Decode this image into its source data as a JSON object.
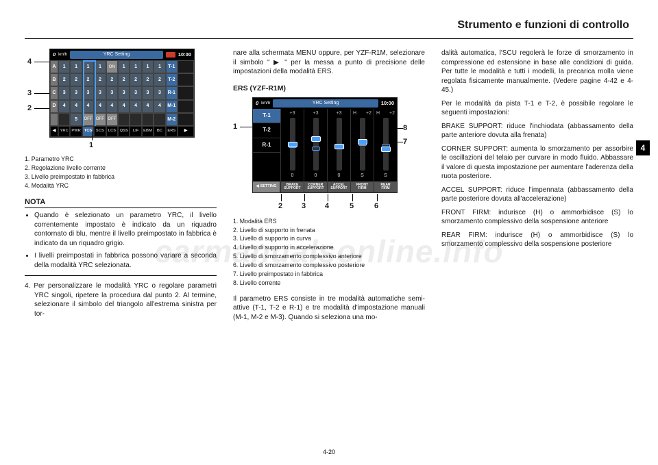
{
  "header": {
    "title": "Strumento e funzioni di controllo"
  },
  "sidetab": "4",
  "footer_page": "4-20",
  "watermark": "carmanualsonline.info",
  "col1": {
    "legend1": "1. Parametro YRC",
    "legend2": "2. Regolazione livello corrente",
    "legend3": "3. Livello preimpostato in fabbrica",
    "legend4": "4. Modalità YRC",
    "nota_label": "NOTA",
    "bullet1": "Quando è selezionato un parametro YRC, il livello correntemente impostato è indicato da un riquadro contornato di blu, mentre il livello preimpostato in fabbrica è indicato da un riquadro grigio.",
    "bullet2": "I livelli preimpostati in fabbrica possono variare a seconda della modalità YRC selezionata.",
    "step4": "4.  Per personalizzare le modalità YRC o regolare parametri YRC singoli, ripetere la procedura dal punto 2. Al termine, selezionare il simbolo del triangolo all'estrema sinistra per tor-"
  },
  "col2": {
    "cont": "nare alla schermata MENU oppure, per YZF-R1M, selezionare il simbolo \" ▶ \" per la messa a punto di precisione delle impostazioni della modalità ERS.",
    "ers_title": "ERS (YZF-R1M)",
    "legend1": "1. Modalità ERS",
    "legend2": "2. Livello di supporto in frenata",
    "legend3": "3. Livello di supporto in curva",
    "legend4": "4. Livello di supporto in accelerazione",
    "legend5": "5. Livello di smorzamento complessivo anteriore",
    "legend6": "6. Livello di smorzamento complessivo posteriore",
    "legend7": "7. Livello preimpostato in fabbrica",
    "legend8": "8. Livello corrente",
    "para2": "Il parametro ERS consiste in tre modalità automatiche semi-attive (T-1, T-2 e R-1) e tre modalità d'impostazione manuali (M-1, M-2 e M-3). Quando si seleziona una mo-"
  },
  "col3": {
    "p1": "dalità automatica, l'SCU regolerà le forze di smorzamento in compressione ed estensione in base alle condizioni di guida. Per tutte le modalità e tutti i modelli, la precarica molla viene regolata fisicamente manualmente. (Vedere pagine 4-42 e 4-45.)",
    "p2": "Per le modalità da pista T-1 e T-2, è possibile regolare le seguenti impostazioni:",
    "p3": "BRAKE SUPPORT: riduce l'inchiodata (abbassamento della parte anteriore dovuta alla frenata)",
    "p4": "CORNER SUPPORT: aumenta lo smorzamento per assorbire le oscillazioni del telaio per curvare in modo fluido. Abbassare il valore di questa impostazione per aumentare l'aderenza della ruota posteriore.",
    "p5": "ACCEL SUPPORT: riduce l'impennata (abbassamento della parte posteriore dovuta all'accelerazione)",
    "p6": "FRONT FIRM: indurisce (H) o ammorbidisce (S) lo smorzamento complessivo della sospensione anteriore",
    "p7": "REAR FIRM: indurisce (H) o ammorbidisce (S) lo smorzamento complessivo della sospensione posteriore"
  },
  "fig1": {
    "speed": "0",
    "unit": "km/h",
    "title": "YRC Setting",
    "time": "10:00",
    "row_btns": [
      "A",
      "B",
      "C",
      "D",
      " "
    ],
    "grid": [
      [
        "1",
        "1",
        "1",
        "1",
        "ON",
        "1",
        "1",
        "1",
        "1",
        "T-1"
      ],
      [
        "2",
        "2",
        "2",
        "2",
        "2",
        "2",
        "2",
        "2",
        "2",
        "T-2"
      ],
      [
        "3",
        "3",
        "3",
        "3",
        "3",
        "3",
        "3",
        "3",
        "3",
        "R-1"
      ],
      [
        "4",
        "4",
        "4",
        "4",
        "4",
        "4",
        "4",
        "4",
        "4",
        "M-1"
      ],
      [
        "",
        "5",
        "OFF",
        "OFF",
        "OFF",
        "",
        "",
        "",
        "",
        "M-2"
      ]
    ],
    "bottom": [
      "◀",
      "YRC",
      "PWR",
      "TCS",
      "SCS",
      "LCS",
      "QSS",
      "LIF",
      "EBM",
      "BC",
      "ERS",
      "▶"
    ],
    "bottom_hl_index": 3,
    "callouts": {
      "c1": "1",
      "c2": "2",
      "c3": "3",
      "c4": "4"
    }
  },
  "fig2": {
    "speed": "0",
    "unit": "km/h",
    "title": "YRC Setting",
    "time": "10:00",
    "modes": [
      "T-1",
      "T-2",
      "R-1"
    ],
    "active_mode": 0,
    "sliders": [
      {
        "top": "+3",
        "preset_pct": 50,
        "knob_pct": 45,
        "num": "0",
        "l": "",
        "r": ""
      },
      {
        "top": "+3",
        "preset_pct": 55,
        "knob_pct": 35,
        "num": "0",
        "l": "",
        "r": ""
      },
      {
        "top": "+3",
        "preset_pct": 50,
        "knob_pct": 50,
        "num": "0",
        "l": "",
        "r": ""
      },
      {
        "top": "",
        "preset_pct": 45,
        "knob_pct": 40,
        "num": "S",
        "l": "H",
        "r": "+2"
      },
      {
        "top": "",
        "preset_pct": 50,
        "knob_pct": 55,
        "num": "S",
        "l": "H",
        "r": "+2"
      }
    ],
    "setting_btn": "SETTING",
    "bottom_labels": [
      "BRAKE\nSUPPORT",
      "CORNER\nSUPPORT",
      "ACCEL\nSUPPORT",
      "FRONT\nFIRM",
      "REAR\nFIRM"
    ],
    "callouts": {
      "c1": "1",
      "c2": "2",
      "c3": "3",
      "c4": "4",
      "c5": "5",
      "c6": "6",
      "c7": "7",
      "c8": "8"
    }
  }
}
